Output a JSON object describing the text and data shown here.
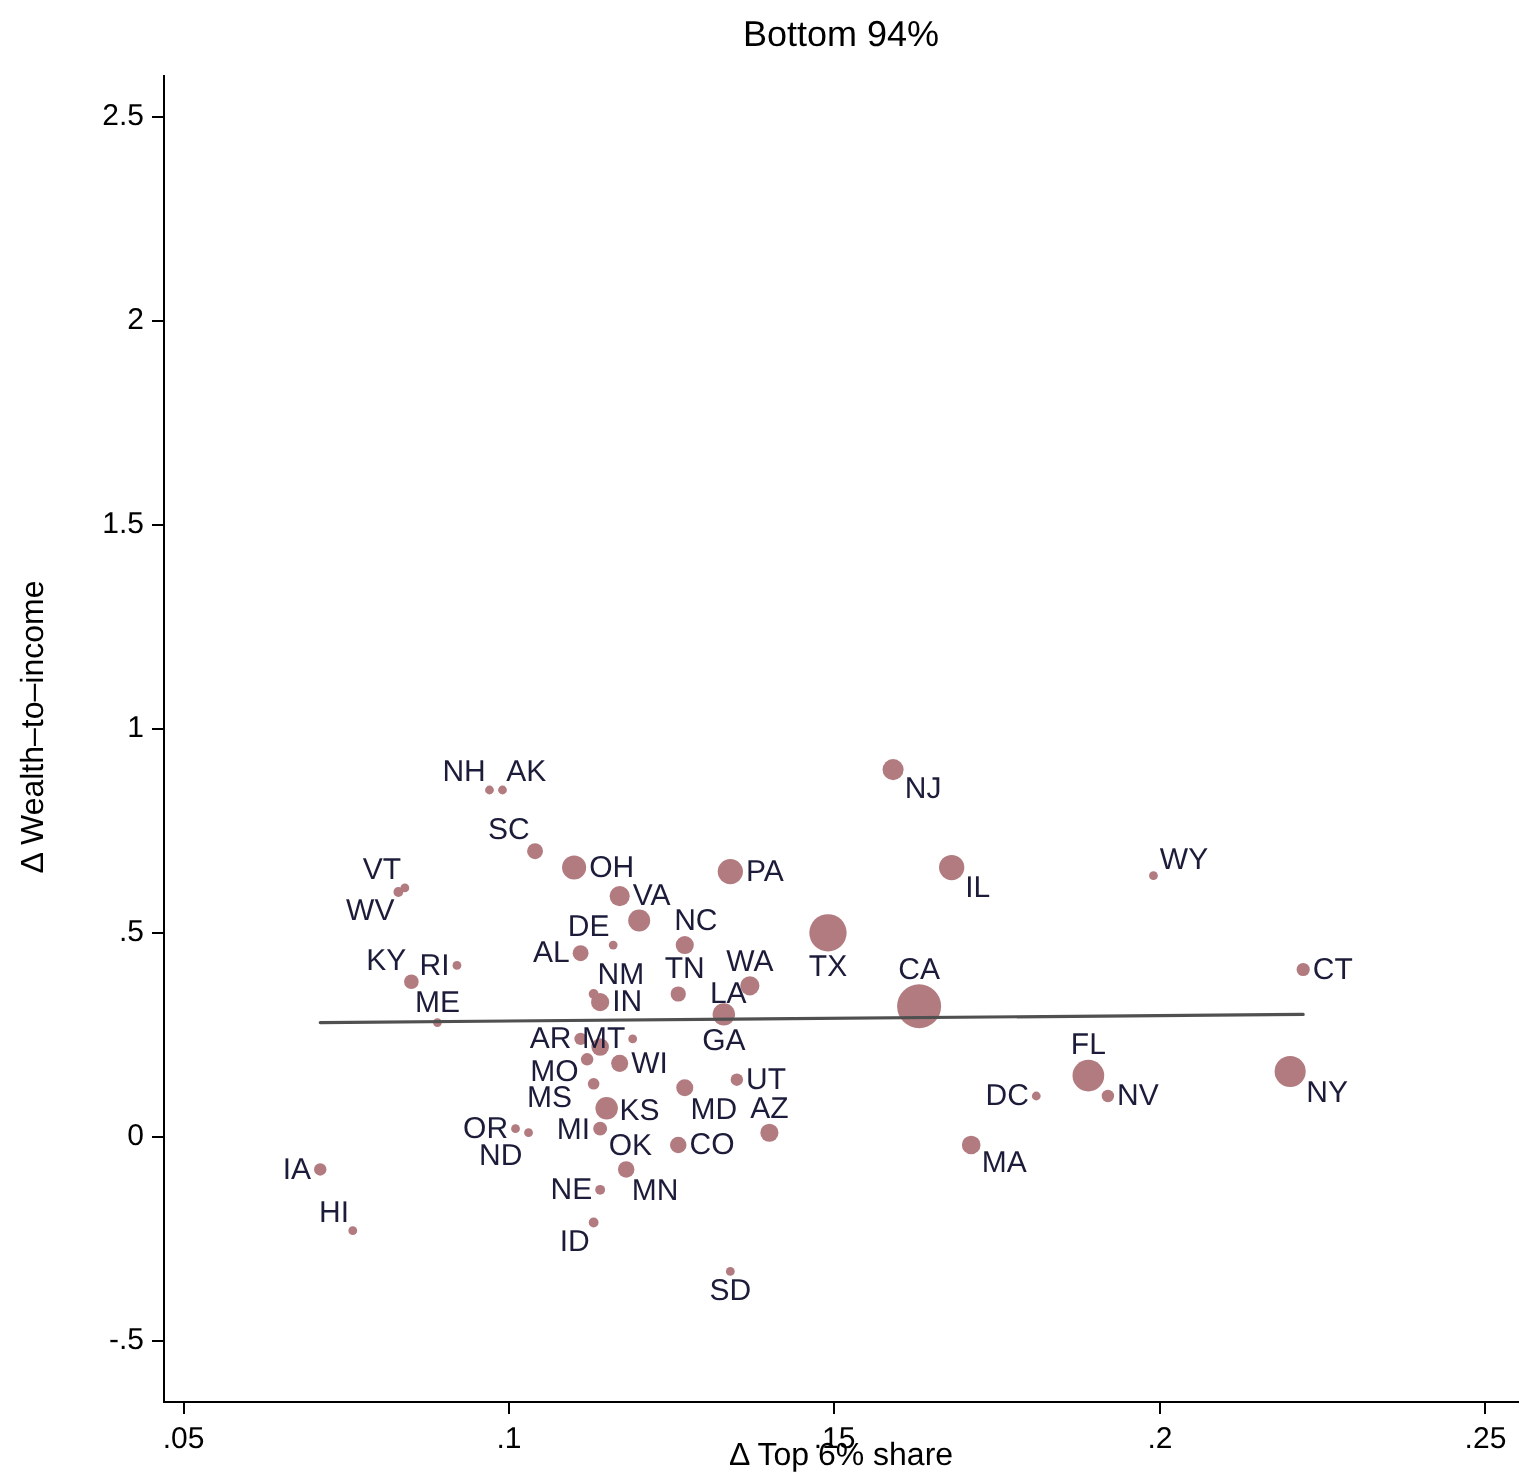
{
  "chart_data": {
    "type": "bubble",
    "title": "Bottom 94%",
    "xlabel": "Δ Top 6% share",
    "ylabel": "Δ Wealth–to–income",
    "xlim": [
      0.047,
      0.255
    ],
    "ylim": [
      -0.65,
      2.6
    ],
    "xticks": [
      {
        "value": 0.05,
        "label": ".05"
      },
      {
        "value": 0.1,
        "label": ".1"
      },
      {
        "value": 0.15,
        "label": ".15"
      },
      {
        "value": 0.2,
        "label": ".2"
      },
      {
        "value": 0.25,
        "label": ".25"
      }
    ],
    "yticks": [
      {
        "value": -0.5,
        "label": "-.5"
      },
      0,
      {
        "value": 0.5,
        "label": ".5"
      },
      1,
      1.5,
      2,
      2.5
    ],
    "series": [
      {
        "color": "#b27b80",
        "marker": "circle",
        "x": [
          0.097,
          0.099,
          0.104,
          0.11,
          0.083,
          0.084,
          0.085,
          0.092,
          0.089,
          0.111,
          0.116,
          0.117,
          0.12,
          0.113,
          0.114,
          0.111,
          0.114,
          0.112,
          0.117,
          0.119,
          0.113,
          0.115,
          0.114,
          0.101,
          0.103,
          0.118,
          0.114,
          0.113,
          0.127,
          0.126,
          0.135,
          0.14,
          0.134,
          0.127,
          0.126,
          0.137,
          0.133,
          0.134,
          0.149,
          0.159,
          0.168,
          0.163,
          0.171,
          0.199,
          0.222,
          0.181,
          0.189,
          0.192,
          0.22,
          0.071,
          0.076
        ],
        "values": [
          0.85,
          0.85,
          0.7,
          0.66,
          0.6,
          0.61,
          0.38,
          0.42,
          0.28,
          0.45,
          0.47,
          0.59,
          0.53,
          0.35,
          0.33,
          0.24,
          0.22,
          0.19,
          0.18,
          0.24,
          0.13,
          0.07,
          0.02,
          0.02,
          0.01,
          -0.08,
          -0.13,
          -0.21,
          0.12,
          -0.02,
          0.14,
          0.01,
          -0.33,
          0.47,
          0.35,
          0.37,
          0.3,
          0.65,
          0.5,
          0.9,
          0.66,
          0.32,
          -0.02,
          0.64,
          0.41,
          0.1,
          0.15,
          0.1,
          0.16,
          -0.08,
          -0.23
        ],
        "sizes": [
          0.04,
          0.04,
          0.13,
          0.3,
          0.05,
          0.04,
          0.11,
          0.04,
          0.04,
          0.13,
          0.04,
          0.21,
          0.25,
          0.05,
          0.17,
          0.08,
          0.16,
          0.08,
          0.15,
          0.04,
          0.07,
          0.26,
          0.1,
          0.04,
          0.04,
          0.14,
          0.05,
          0.05,
          0.15,
          0.14,
          0.08,
          0.17,
          0.04,
          0.17,
          0.12,
          0.19,
          0.26,
          0.33,
          0.72,
          0.23,
          0.33,
          1,
          0.18,
          0.04,
          0.09,
          0.04,
          0.52,
          0.08,
          0.5,
          0.08,
          0.04
        ],
        "value_labels": [
          "NH",
          "AK",
          "SC",
          "OH",
          "WV",
          "VT",
          "KY",
          "RI",
          "ME",
          "AL",
          "DE",
          "VA",
          "NC",
          "NM",
          "IN",
          "AR",
          "MO",
          "MS",
          "WI",
          "MT",
          "KS",
          "MI",
          "OK",
          "OR",
          "ND",
          "MN",
          "NE",
          "ID",
          "MD",
          "CO",
          "UT",
          "AZ",
          "SD",
          "TN",
          "LA",
          "WA",
          "GA",
          "PA",
          "TX",
          "NJ",
          "IL",
          "CA",
          "MA",
          "WY",
          "CT",
          "DC",
          "FL",
          "NV",
          "NY",
          "IA",
          "HI"
        ]
      },
      {
        "type": "line",
        "color": "#505050",
        "x": [
          0.071,
          0.222
        ],
        "values": [
          0.28,
          0.3
        ]
      }
    ]
  }
}
